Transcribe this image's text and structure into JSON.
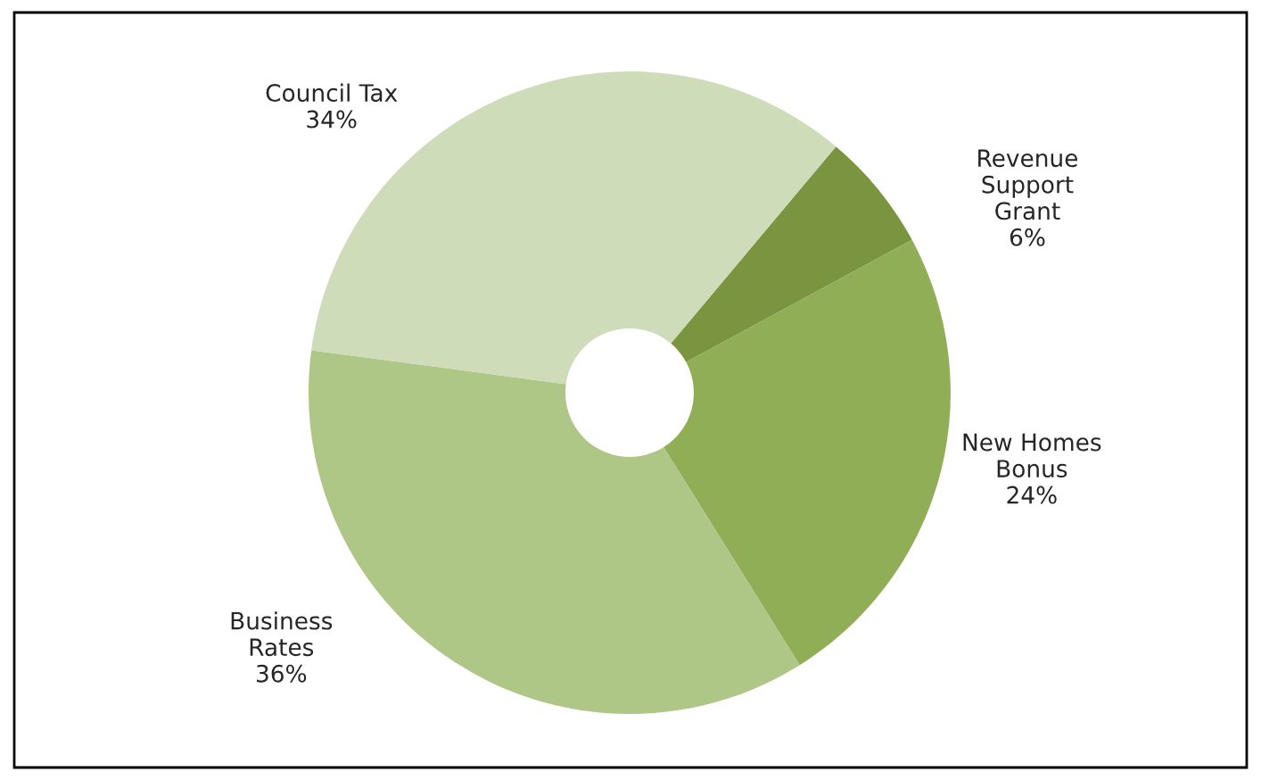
{
  "chart_data": {
    "type": "donut",
    "categories": [
      "Revenue\nSupport\nGrant",
      "New Homes\nBonus",
      "Business\nRates",
      "Council Tax"
    ],
    "values": [
      6,
      24,
      36,
      34
    ],
    "colors": [
      "#7a9440",
      "#8fae56",
      "#aec787",
      "#cfdcb9"
    ],
    "value_labels": [
      "6%",
      "24%",
      "36%",
      "34%"
    ],
    "legend": false
  }
}
